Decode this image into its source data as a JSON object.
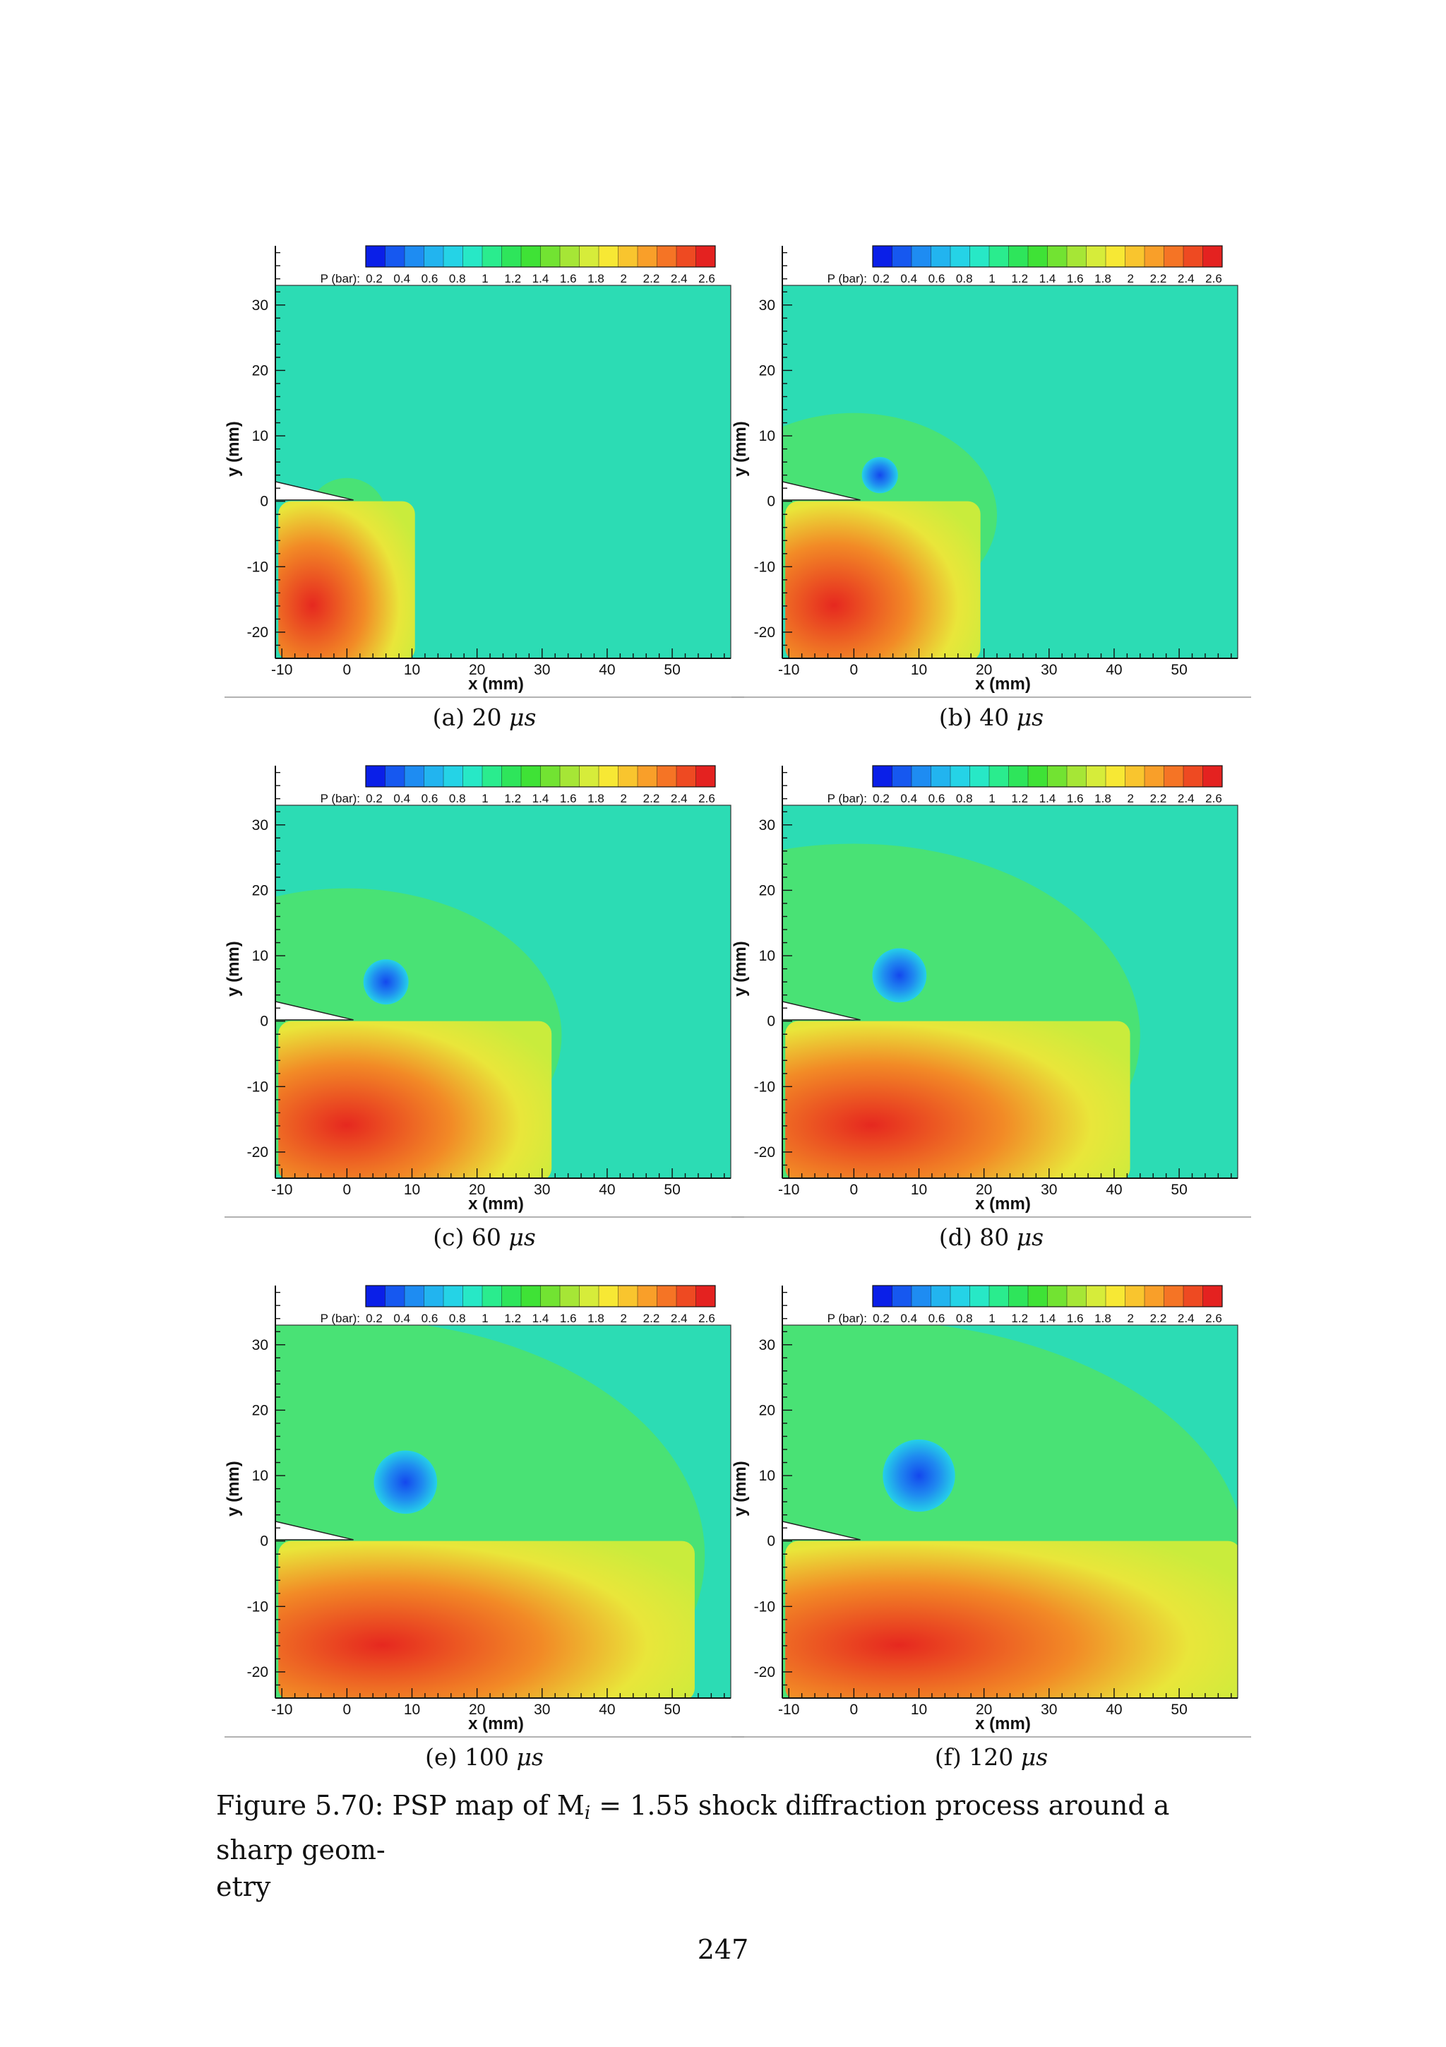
{
  "figure": {
    "prefix": "Figure 5.70: PSP map of M",
    "mach_sub": "i",
    "suffix": " = 1.55 shock diffraction process around a sharp geom-",
    "line2": "etry"
  },
  "page_number": "247",
  "colorbar": {
    "label": "P (bar):",
    "ticks": [
      "0.2",
      "0.4",
      "0.6",
      "0.8",
      "1",
      "1.2",
      "1.4",
      "1.6",
      "1.8",
      "2",
      "2.2",
      "2.4",
      "2.6"
    ],
    "colors": [
      "#0a1fe8",
      "#1658f0",
      "#1e8cf2",
      "#22b4ef",
      "#25d3e6",
      "#27e8c6",
      "#2aec8e",
      "#2ee55b",
      "#3fe236",
      "#72e332",
      "#a6e636",
      "#d6ec3a",
      "#f7e834",
      "#f9c52e",
      "#f99f29",
      "#f57425",
      "#ee4a22",
      "#e42220"
    ]
  },
  "axes": {
    "xlabel": "x (mm)",
    "ylabel": "y (mm)",
    "xticks": [
      "-10",
      "0",
      "10",
      "20",
      "30",
      "40",
      "50"
    ],
    "yticks": [
      "30",
      "20",
      "10",
      "0",
      "-10",
      "-20"
    ]
  },
  "chart_data": [
    {
      "type": "heatmap",
      "panel": "(a)",
      "time": "20",
      "unit": "μs",
      "shock_front_x_mm": 6,
      "vortex": null,
      "high_pressure_region_x_mm": [
        -10,
        11
      ],
      "colorbar_range": [
        0.2,
        2.6
      ]
    },
    {
      "type": "heatmap",
      "panel": "(b)",
      "time": "40",
      "unit": "μs",
      "shock_front_x_mm": 22,
      "vortex": {
        "x_mm": 4,
        "y_mm": 4
      },
      "high_pressure_region_x_mm": [
        -10,
        20
      ],
      "colorbar_range": [
        0.2,
        2.6
      ]
    },
    {
      "type": "heatmap",
      "panel": "(c)",
      "time": "60",
      "unit": "μs",
      "shock_front_x_mm": 33,
      "vortex": {
        "x_mm": 6,
        "y_mm": 6
      },
      "high_pressure_region_x_mm": [
        -10,
        32
      ],
      "colorbar_range": [
        0.2,
        2.6
      ]
    },
    {
      "type": "heatmap",
      "panel": "(d)",
      "time": "80",
      "unit": "μs",
      "shock_front_x_mm": 44,
      "vortex": {
        "x_mm": 7,
        "y_mm": 7
      },
      "high_pressure_region_x_mm": [
        -10,
        43
      ],
      "colorbar_range": [
        0.2,
        2.6
      ]
    },
    {
      "type": "heatmap",
      "panel": "(e)",
      "time": "100",
      "unit": "μs",
      "shock_front_x_mm": 55,
      "vortex": {
        "x_mm": 9,
        "y_mm": 9
      },
      "high_pressure_region_x_mm": [
        -10,
        54
      ],
      "colorbar_range": [
        0.2,
        2.6
      ]
    },
    {
      "type": "heatmap",
      "panel": "(f)",
      "time": "120",
      "unit": "μs",
      "shock_front_x_mm": 60,
      "vortex": {
        "x_mm": 10,
        "y_mm": 10
      },
      "high_pressure_region_x_mm": [
        -10,
        60
      ],
      "colorbar_range": [
        0.2,
        2.6
      ]
    }
  ]
}
